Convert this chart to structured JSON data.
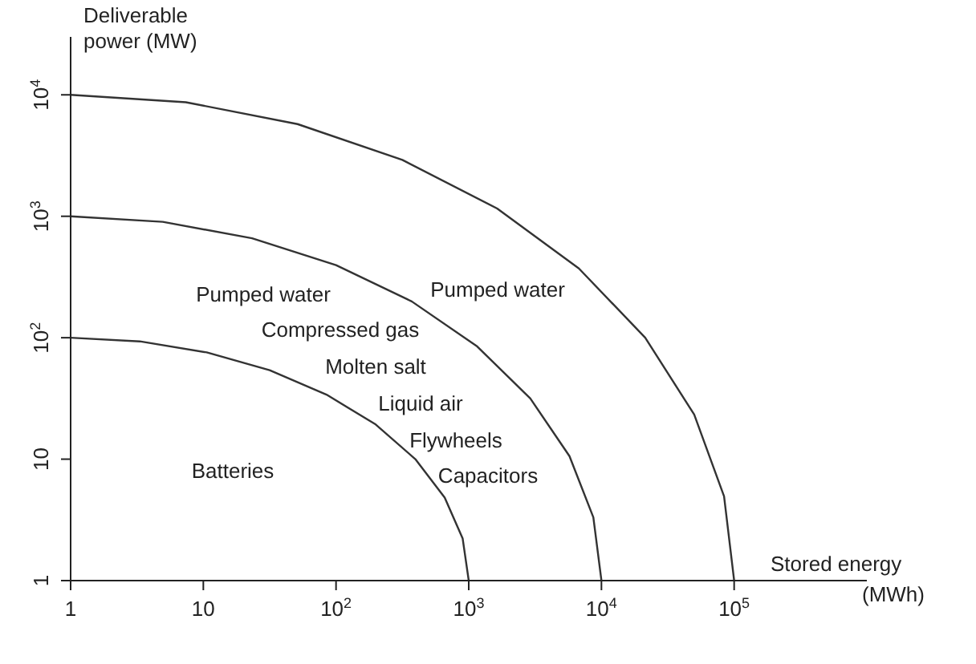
{
  "chart_data": {
    "type": "line",
    "xlabel": "Stored energy",
    "ylabel": "Deliverable power (MW)",
    "log": "xy",
    "xlim": [
      1,
      1000000
    ],
    "ylim": [
      1,
      30000
    ],
    "xticks": [
      {
        "value": 1,
        "label": "1"
      },
      {
        "value": 10,
        "label": "10"
      },
      {
        "value": 100,
        "label": "10$^{2}$"
      },
      {
        "value": 1000,
        "label": "10$^{3}$"
      },
      {
        "value": 10000,
        "label": "10$^{4}$"
      },
      {
        "value": 100000,
        "label": "10$^{5}$"
      }
    ],
    "yticks": [
      {
        "value": 1,
        "label": "1"
      },
      {
        "value": 10,
        "label": "10"
      },
      {
        "value": 100,
        "label": "10$^{2}$"
      },
      {
        "value": 1000,
        "label": "10$^{3}$"
      },
      {
        "value": 10000,
        "label": "10$^{4}$"
      }
    ],
    "series": [
      {
        "color": "#333333",
        "x": [
          1,
          3.32,
          10.6,
          31.6,
          84.7,
          199,
          396,
          659,
          900,
          1000
        ],
        "values": [
          100,
          93.3,
          75.7,
          54,
          34,
          19.3,
          10,
          4.83,
          2.22,
          1
        ]
      },
      {
        "color": "#333333",
        "x": [
          1,
          4.95,
          23.3,
          100,
          372,
          1159,
          2911,
          5741,
          8690,
          10000
        ],
        "values": [
          1000,
          900,
          659,
          396,
          199,
          84.7,
          31.6,
          10.6,
          3.32,
          1
        ]
      },
      {
        "color": "#333333",
        "x": [
          1,
          7.38,
          51.3,
          316,
          1637,
          6761,
          21380,
          50000,
          83950,
          100000
        ],
        "values": [
          10000,
          8690,
          5741,
          2911,
          1159,
          372,
          100,
          23.3,
          4.95,
          1
        ]
      }
    ],
    "annotations": [
      "Pumped water",
      "Compressed gas",
      "Molten salt",
      "Liquid air",
      "Flywheels",
      "Capacitors",
      "Batteries",
      "Pumped water",
      "(MWh)"
    ]
  }
}
